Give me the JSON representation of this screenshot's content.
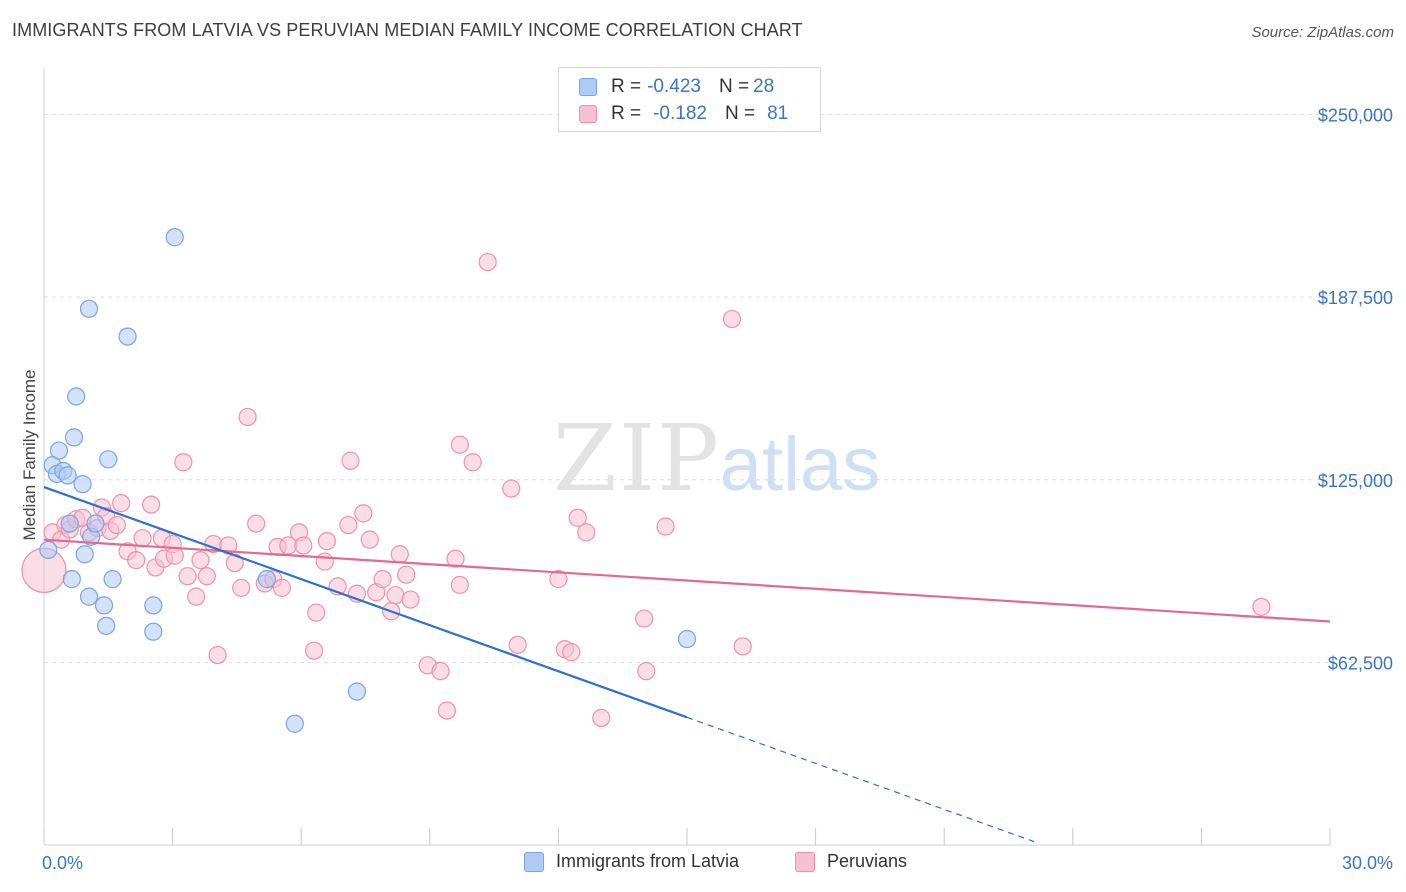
{
  "title": "IMMIGRANTS FROM LATVIA VS PERUVIAN MEDIAN FAMILY INCOME CORRELATION CHART",
  "source": "Source: ZipAtlas.com",
  "watermark": {
    "zip": "ZIP",
    "atlas": "atlas"
  },
  "legend_stats": [
    {
      "r_label": "R = ",
      "r_value": "-0.423",
      "n_label": "N = ",
      "n_value": "28",
      "color": "#aecbf3",
      "border": "#7aa5e0"
    },
    {
      "r_label": "R = ",
      "r_value": "-0.182",
      "n_label": "N = ",
      "n_value": "81",
      "color": "#f7c1d2",
      "border": "#ee91ad"
    }
  ],
  "chart_data": {
    "type": "scatter",
    "title": "IMMIGRANTS FROM LATVIA VS PERUVIAN MEDIAN FAMILY INCOME CORRELATION CHART",
    "xlabel": "",
    "ylabel": "Median Family Income",
    "xlim": [
      0,
      30
    ],
    "ylim": [
      0,
      262500
    ],
    "x_tick_labels": [
      "0.0%",
      "30.0%"
    ],
    "y_ticks": [
      62500,
      125000,
      187500,
      250000
    ],
    "y_tick_labels": [
      "$62,500",
      "$125,000",
      "$187,500",
      "$250,000"
    ],
    "grid": "horizontal dashed",
    "legend_position": "bottom",
    "series": [
      {
        "name": "Immigrants from Latvia",
        "color": "#7aa5e0",
        "fill": "#aecbf3",
        "trend": {
          "x0": 0,
          "y0": 122500,
          "x1": 15,
          "y1": 43700,
          "dashed_to_x": 23.1,
          "line_color": "#2f6fd0"
        },
        "points": [
          [
            0.1,
            101000
          ],
          [
            0.2,
            130000
          ],
          [
            0.3,
            127000
          ],
          [
            0.35,
            135000
          ],
          [
            0.45,
            128000
          ],
          [
            0.55,
            126500
          ],
          [
            0.6,
            110000
          ],
          [
            0.7,
            139500
          ],
          [
            0.75,
            153500
          ],
          [
            0.9,
            123500
          ],
          [
            0.95,
            99500
          ],
          [
            1.05,
            85000
          ],
          [
            1.1,
            105500
          ],
          [
            1.2,
            110000
          ],
          [
            1.4,
            82000
          ],
          [
            1.45,
            75000
          ],
          [
            1.5,
            132000
          ],
          [
            1.6,
            91000
          ],
          [
            1.95,
            174000
          ],
          [
            2.55,
            73000
          ],
          [
            2.55,
            82000
          ],
          [
            3.05,
            208000
          ],
          [
            5.2,
            91000
          ],
          [
            5.85,
            41500
          ],
          [
            7.3,
            52500
          ],
          [
            15.0,
            70500
          ],
          [
            0.65,
            91000
          ],
          [
            1.05,
            183500
          ]
        ]
      },
      {
        "name": "Peruvians",
        "color": "#ee91ad",
        "fill": "#f7c1d2",
        "trend": {
          "x0": 0,
          "y0": 104500,
          "x1": 30,
          "y1": 76500,
          "line_color": "#e16a93"
        },
        "points": [
          [
            0.0,
            94000
          ],
          [
            0.2,
            107000
          ],
          [
            0.4,
            104500
          ],
          [
            0.5,
            109500
          ],
          [
            0.6,
            108000
          ],
          [
            0.75,
            111500
          ],
          [
            0.9,
            112000
          ],
          [
            1.05,
            107000
          ],
          [
            1.25,
            108500
          ],
          [
            1.35,
            115500
          ],
          [
            1.45,
            112500
          ],
          [
            1.55,
            107500
          ],
          [
            1.7,
            109500
          ],
          [
            1.8,
            117000
          ],
          [
            1.95,
            100500
          ],
          [
            2.15,
            97500
          ],
          [
            2.3,
            105000
          ],
          [
            2.5,
            116500
          ],
          [
            2.6,
            95000
          ],
          [
            2.75,
            105000
          ],
          [
            2.8,
            98000
          ],
          [
            3.0,
            103000
          ],
          [
            3.05,
            99000
          ],
          [
            3.25,
            131000
          ],
          [
            3.35,
            92000
          ],
          [
            3.55,
            85000
          ],
          [
            3.65,
            97500
          ],
          [
            3.8,
            92000
          ],
          [
            3.95,
            103000
          ],
          [
            4.05,
            65000
          ],
          [
            4.3,
            102500
          ],
          [
            4.45,
            96500
          ],
          [
            4.6,
            88000
          ],
          [
            4.75,
            146500
          ],
          [
            4.95,
            110000
          ],
          [
            5.15,
            89500
          ],
          [
            5.35,
            91000
          ],
          [
            5.45,
            102000
          ],
          [
            5.55,
            88000
          ],
          [
            5.7,
            102500
          ],
          [
            5.95,
            107000
          ],
          [
            6.05,
            102500
          ],
          [
            6.3,
            66500
          ],
          [
            6.35,
            79500
          ],
          [
            6.55,
            97000
          ],
          [
            6.6,
            104000
          ],
          [
            6.85,
            88500
          ],
          [
            7.1,
            109500
          ],
          [
            7.15,
            131500
          ],
          [
            7.3,
            86000
          ],
          [
            7.45,
            113500
          ],
          [
            7.6,
            104500
          ],
          [
            7.75,
            86500
          ],
          [
            7.9,
            91000
          ],
          [
            8.1,
            80000
          ],
          [
            8.2,
            85500
          ],
          [
            8.3,
            99500
          ],
          [
            8.45,
            92500
          ],
          [
            8.55,
            84000
          ],
          [
            8.95,
            61500
          ],
          [
            9.25,
            59500
          ],
          [
            9.4,
            46000
          ],
          [
            9.6,
            98000
          ],
          [
            9.7,
            89000
          ],
          [
            9.7,
            137000
          ],
          [
            10.0,
            131000
          ],
          [
            10.35,
            199500
          ],
          [
            10.9,
            122000
          ],
          [
            11.05,
            68500
          ],
          [
            12.0,
            91000
          ],
          [
            12.15,
            67000
          ],
          [
            12.3,
            66000
          ],
          [
            12.45,
            112000
          ],
          [
            12.65,
            107000
          ],
          [
            13.0,
            43500
          ],
          [
            14.0,
            77500
          ],
          [
            14.05,
            59500
          ],
          [
            14.5,
            109000
          ],
          [
            16.05,
            180000
          ],
          [
            16.3,
            68000
          ],
          [
            28.4,
            81500
          ]
        ]
      }
    ]
  }
}
